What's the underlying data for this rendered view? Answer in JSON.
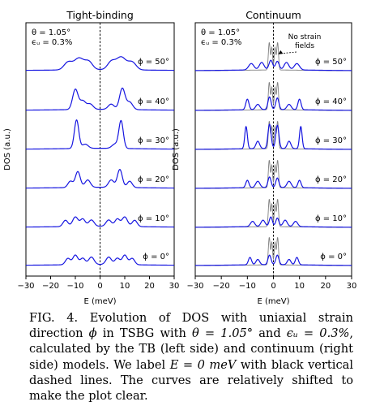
{
  "chart_data": [
    {
      "type": "line",
      "title": "Tight-binding",
      "xlabel": "E (meV)",
      "ylabel": "DOS (a.u.)",
      "xlim": [
        -30,
        30
      ],
      "xticks": [
        "−30",
        "−20",
        "−10",
        "0",
        "10",
        "20",
        "30"
      ],
      "params": [
        "θ = 1.05°",
        "ϵᵤ = 0.3%"
      ],
      "series": [
        {
          "name": "ϕ = 50°",
          "color": "#1515e0",
          "peaks": [
            {
              "e": -13,
              "a": 0.35,
              "w": 1.6
            },
            {
              "e": -8.5,
              "a": 0.55,
              "w": 2.0
            },
            {
              "e": -4.5,
              "a": 0.35,
              "w": 1.5
            },
            {
              "e": 4.5,
              "a": 0.35,
              "w": 1.5
            },
            {
              "e": 8.5,
              "a": 0.6,
              "w": 2.0
            },
            {
              "e": 13,
              "a": 0.35,
              "w": 1.6
            }
          ],
          "base": 0.05
        },
        {
          "name": "ϕ = 40°",
          "color": "#1515e0",
          "peaks": [
            {
              "e": -10,
              "a": 0.95,
              "w": 1.1
            },
            {
              "e": -7,
              "a": 0.4,
              "w": 1.2
            },
            {
              "e": -4,
              "a": 0.25,
              "w": 1.2
            },
            {
              "e": 4.5,
              "a": 0.25,
              "w": 1.2
            },
            {
              "e": 9,
              "a": 1.0,
              "w": 1.1
            },
            {
              "e": 12,
              "a": 0.35,
              "w": 1.2
            }
          ],
          "base": 0.05
        },
        {
          "name": "ϕ = 30°",
          "color": "#1515e0",
          "peaks": [
            {
              "e": -9.5,
              "a": 1.35,
              "w": 0.9
            },
            {
              "e": -6,
              "a": 0.2,
              "w": 1.2
            },
            {
              "e": 6,
              "a": 0.2,
              "w": 1.2
            },
            {
              "e": 8.5,
              "a": 1.3,
              "w": 0.9
            }
          ],
          "base": 0.05
        },
        {
          "name": "ϕ = 20°",
          "color": "#1515e0",
          "peaks": [
            {
              "e": -12,
              "a": 0.3,
              "w": 1.0
            },
            {
              "e": -9,
              "a": 0.75,
              "w": 1.0
            },
            {
              "e": -5,
              "a": 0.35,
              "w": 1.1
            },
            {
              "e": 4.5,
              "a": 0.35,
              "w": 1.1
            },
            {
              "e": 8,
              "a": 0.85,
              "w": 1.0
            },
            {
              "e": 12,
              "a": 0.3,
              "w": 1.0
            }
          ],
          "base": 0.05
        },
        {
          "name": "ϕ = 10°",
          "color": "#1515e0",
          "peaks": [
            {
              "e": -14,
              "a": 0.3,
              "w": 1.0
            },
            {
              "e": -10,
              "a": 0.45,
              "w": 1.1
            },
            {
              "e": -7,
              "a": 0.35,
              "w": 1.0
            },
            {
              "e": -3.5,
              "a": 0.3,
              "w": 1.1
            },
            {
              "e": 3.5,
              "a": 0.3,
              "w": 1.1
            },
            {
              "e": 7,
              "a": 0.35,
              "w": 1.0
            },
            {
              "e": 10,
              "a": 0.45,
              "w": 1.1
            },
            {
              "e": 14,
              "a": 0.3,
              "w": 1.0
            }
          ],
          "base": 0.05
        },
        {
          "name": "ϕ = 0°",
          "color": "#1515e0",
          "peaks": [
            {
              "e": -13,
              "a": 0.3,
              "w": 1.0
            },
            {
              "e": -10,
              "a": 0.45,
              "w": 1.0
            },
            {
              "e": -7,
              "a": 0.3,
              "w": 1.0
            },
            {
              "e": -3.5,
              "a": 0.35,
              "w": 1.1
            },
            {
              "e": 3.5,
              "a": 0.35,
              "w": 1.1
            },
            {
              "e": 7,
              "a": 0.3,
              "w": 1.0
            },
            {
              "e": 10,
              "a": 0.45,
              "w": 1.0
            },
            {
              "e": 13,
              "a": 0.3,
              "w": 1.0
            }
          ],
          "base": 0.05
        }
      ],
      "zero_line": {
        "x": 0,
        "style": "dashed",
        "color": "#000000"
      }
    },
    {
      "type": "line",
      "title": "Continuum",
      "xlabel": "E (meV)",
      "ylabel": "DOS (a.u.)",
      "xlim": [
        -30,
        30
      ],
      "xticks": [
        "−30",
        "−20",
        "−10",
        "0",
        "10",
        "20",
        "30"
      ],
      "params": [
        "θ = 1.05°",
        "ϵᵤ = 0.3%"
      ],
      "annotation": {
        "lines": [
          "No strain",
          "fields"
        ],
        "arrow_to_e": 1.5
      },
      "reference": {
        "name": "No strain fields",
        "color": "#808080",
        "peaks": [
          {
            "e": -1.6,
            "a": 1.3,
            "w": 0.35
          },
          {
            "e": -0.6,
            "a": 1.05,
            "w": 0.3
          },
          {
            "e": 0.6,
            "a": 1.05,
            "w": 0.3
          },
          {
            "e": 1.6,
            "a": 1.3,
            "w": 0.35
          }
        ],
        "base": 0.03
      },
      "series": [
        {
          "name": "ϕ = 50°",
          "color": "#1515e0",
          "peaks": [
            {
              "e": -8.5,
              "a": 0.3,
              "w": 1.0
            },
            {
              "e": -4.5,
              "a": 0.35,
              "w": 0.9
            },
            {
              "e": -1,
              "a": 0.45,
              "w": 0.7
            },
            {
              "e": 1.5,
              "a": 0.4,
              "w": 0.7
            },
            {
              "e": 5,
              "a": 0.35,
              "w": 0.9
            },
            {
              "e": 9,
              "a": 0.3,
              "w": 1.0
            }
          ],
          "base": 0.04
        },
        {
          "name": "ϕ = 40°",
          "color": "#1515e0",
          "peaks": [
            {
              "e": -10,
              "a": 0.5,
              "w": 0.6
            },
            {
              "e": -6,
              "a": 0.25,
              "w": 0.8
            },
            {
              "e": -1.5,
              "a": 0.6,
              "w": 0.6
            },
            {
              "e": 1.5,
              "a": 0.55,
              "w": 0.6
            },
            {
              "e": 6,
              "a": 0.25,
              "w": 0.8
            },
            {
              "e": 10,
              "a": 0.5,
              "w": 0.6
            }
          ],
          "base": 0.04
        },
        {
          "name": "ϕ = 30°",
          "color": "#1515e0",
          "peaks": [
            {
              "e": -10.5,
              "a": 1.05,
              "w": 0.5
            },
            {
              "e": -6,
              "a": 0.35,
              "w": 0.7
            },
            {
              "e": -1.5,
              "a": 1.15,
              "w": 0.6
            },
            {
              "e": 1.5,
              "a": 1.1,
              "w": 0.6
            },
            {
              "e": 6,
              "a": 0.35,
              "w": 0.7
            },
            {
              "e": 10.5,
              "a": 1.05,
              "w": 0.5
            }
          ],
          "base": 0.04
        },
        {
          "name": "ϕ = 20°",
          "color": "#1515e0",
          "peaks": [
            {
              "e": -10,
              "a": 0.35,
              "w": 0.6
            },
            {
              "e": -6,
              "a": 0.3,
              "w": 0.8
            },
            {
              "e": -1.5,
              "a": 0.5,
              "w": 0.6
            },
            {
              "e": 1.5,
              "a": 0.45,
              "w": 0.6
            },
            {
              "e": 6,
              "a": 0.3,
              "w": 0.8
            },
            {
              "e": 10,
              "a": 0.35,
              "w": 0.6
            }
          ],
          "base": 0.04
        },
        {
          "name": "ϕ = 10°",
          "color": "#1515e0",
          "peaks": [
            {
              "e": -8,
              "a": 0.25,
              "w": 0.8
            },
            {
              "e": -4,
              "a": 0.3,
              "w": 0.8
            },
            {
              "e": -1,
              "a": 0.45,
              "w": 0.6
            },
            {
              "e": 1.5,
              "a": 0.4,
              "w": 0.6
            },
            {
              "e": 4.5,
              "a": 0.3,
              "w": 0.8
            },
            {
              "e": 8.5,
              "a": 0.25,
              "w": 0.8
            }
          ],
          "base": 0.04
        },
        {
          "name": "ϕ = 0°",
          "color": "#1515e0",
          "peaks": [
            {
              "e": -9,
              "a": 0.35,
              "w": 0.6
            },
            {
              "e": -6,
              "a": 0.25,
              "w": 0.7
            },
            {
              "e": -1.5,
              "a": 0.45,
              "w": 0.6
            },
            {
              "e": 1.5,
              "a": 0.45,
              "w": 0.6
            },
            {
              "e": 6,
              "a": 0.25,
              "w": 0.7
            },
            {
              "e": 9,
              "a": 0.35,
              "w": 0.6
            }
          ],
          "base": 0.04
        }
      ],
      "zero_line": {
        "x": 0,
        "style": "dashed",
        "color": "#000000"
      }
    }
  ],
  "caption": {
    "p1": "FIG. 4.  Evolution of DOS with uniaxial strain direction ",
    "phi": "ϕ",
    "p2": " in TSBG with ",
    "theta_eq": "θ = 1.05°",
    "p3": " and ",
    "eps_eq": "ϵᵤ = 0.3%",
    "p4": ", calculated by the TB (left side) and continuum (right side) models. We label ",
    "e_eq": "E = 0 meV",
    "p5": " with black vertical dashed lines. The curves are relatively shifted to make the plot clear."
  }
}
